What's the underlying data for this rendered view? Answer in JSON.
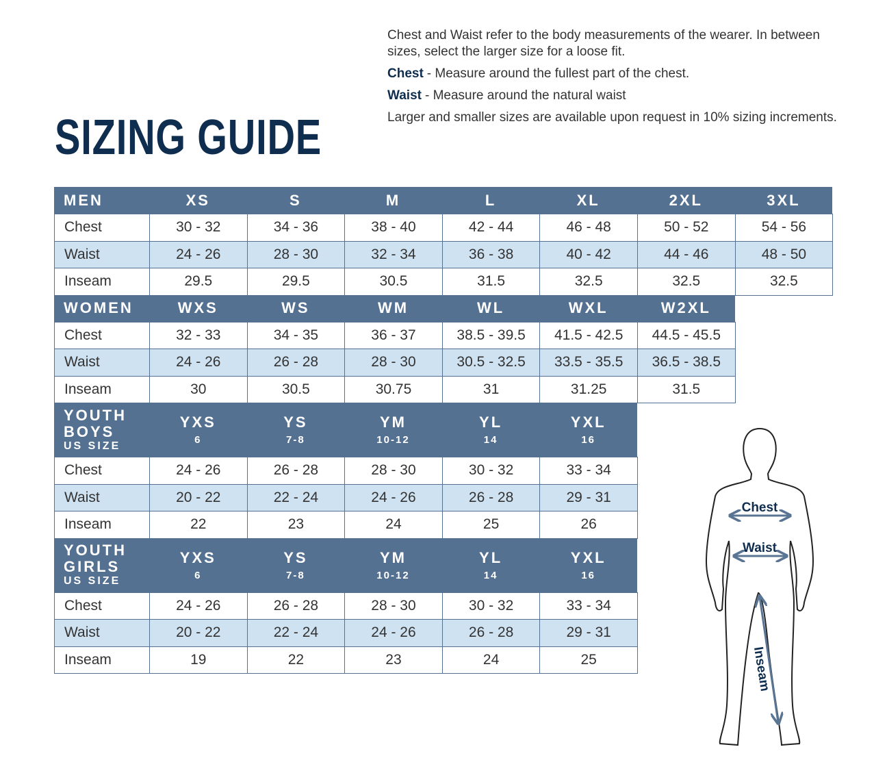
{
  "title": "SIZING GUIDE",
  "intro": [
    {
      "text": "Chest and Waist refer to the body measurements of the wearer. In between sizes, select the larger size for a loose fit."
    },
    {
      "term": "Chest",
      "text": "- Measure around the fullest part of the chest."
    },
    {
      "term": "Waist",
      "text": "- Measure around the natural waist"
    },
    {
      "text": "Larger and smaller sizes are available upon request in 10% sizing increments."
    }
  ],
  "sections": [
    {
      "label": "MEN",
      "sizes": [
        "XS",
        "S",
        "M",
        "L",
        "XL",
        "2XL",
        "3XL"
      ],
      "rows": [
        {
          "label": "Chest",
          "values": [
            "30 - 32",
            "34 - 36",
            "38 - 40",
            "42 - 44",
            "46 - 48",
            "50 - 52",
            "54 - 56"
          ]
        },
        {
          "label": "Waist",
          "values": [
            "24 - 26",
            "28 - 30",
            "32 - 34",
            "36 - 38",
            "40 - 42",
            "44 - 46",
            "48 - 50"
          ]
        },
        {
          "label": "Inseam",
          "values": [
            "29.5",
            "29.5",
            "30.5",
            "31.5",
            "32.5",
            "32.5",
            "32.5"
          ]
        }
      ]
    },
    {
      "label": "WOMEN",
      "sizes": [
        "WXS",
        "WS",
        "WM",
        "WL",
        "WXL",
        "W2XL"
      ],
      "rows": [
        {
          "label": "Chest",
          "values": [
            "32 - 33",
            "34 - 35",
            "36 - 37",
            "38.5 - 39.5",
            "41.5 - 42.5",
            "44.5 - 45.5"
          ]
        },
        {
          "label": "Waist",
          "values": [
            "24 - 26",
            "26 - 28",
            "28 - 30",
            "30.5 - 32.5",
            "33.5 - 35.5",
            "36.5 - 38.5"
          ]
        },
        {
          "label": "Inseam",
          "values": [
            "30",
            "30.5",
            "30.75",
            "31",
            "31.25",
            "31.5"
          ]
        }
      ]
    },
    {
      "label": "YOUTH BOYS",
      "sublabel": "US SIZE",
      "sizes": [
        "YXS",
        "YS",
        "YM",
        "YL",
        "YXL"
      ],
      "us_sizes": [
        "6",
        "7-8",
        "10-12",
        "14",
        "16"
      ],
      "rows": [
        {
          "label": "Chest",
          "values": [
            "24 - 26",
            "26 - 28",
            "28 - 30",
            "30 - 32",
            "33 - 34"
          ]
        },
        {
          "label": "Waist",
          "values": [
            "20 - 22",
            "22 - 24",
            "24 - 26",
            "26 - 28",
            "29 - 31"
          ]
        },
        {
          "label": "Inseam",
          "values": [
            "22",
            "23",
            "24",
            "25",
            "26"
          ]
        }
      ]
    },
    {
      "label": "YOUTH GIRLS",
      "sublabel": "US SIZE",
      "sizes": [
        "YXS",
        "YS",
        "YM",
        "YL",
        "YXL"
      ],
      "us_sizes": [
        "6",
        "7-8",
        "10-12",
        "14",
        "16"
      ],
      "rows": [
        {
          "label": "Chest",
          "values": [
            "24 - 26",
            "26 - 28",
            "28 - 30",
            "30 - 32",
            "33 - 34"
          ]
        },
        {
          "label": "Waist",
          "values": [
            "20 - 22",
            "22 - 24",
            "24 - 26",
            "26 - 28",
            "29 - 31"
          ]
        },
        {
          "label": "Inseam",
          "values": [
            "19",
            "22",
            "23",
            "24",
            "25"
          ]
        }
      ]
    }
  ],
  "figure": {
    "labels": [
      "Chest",
      "Waist",
      "Inseam"
    ]
  }
}
